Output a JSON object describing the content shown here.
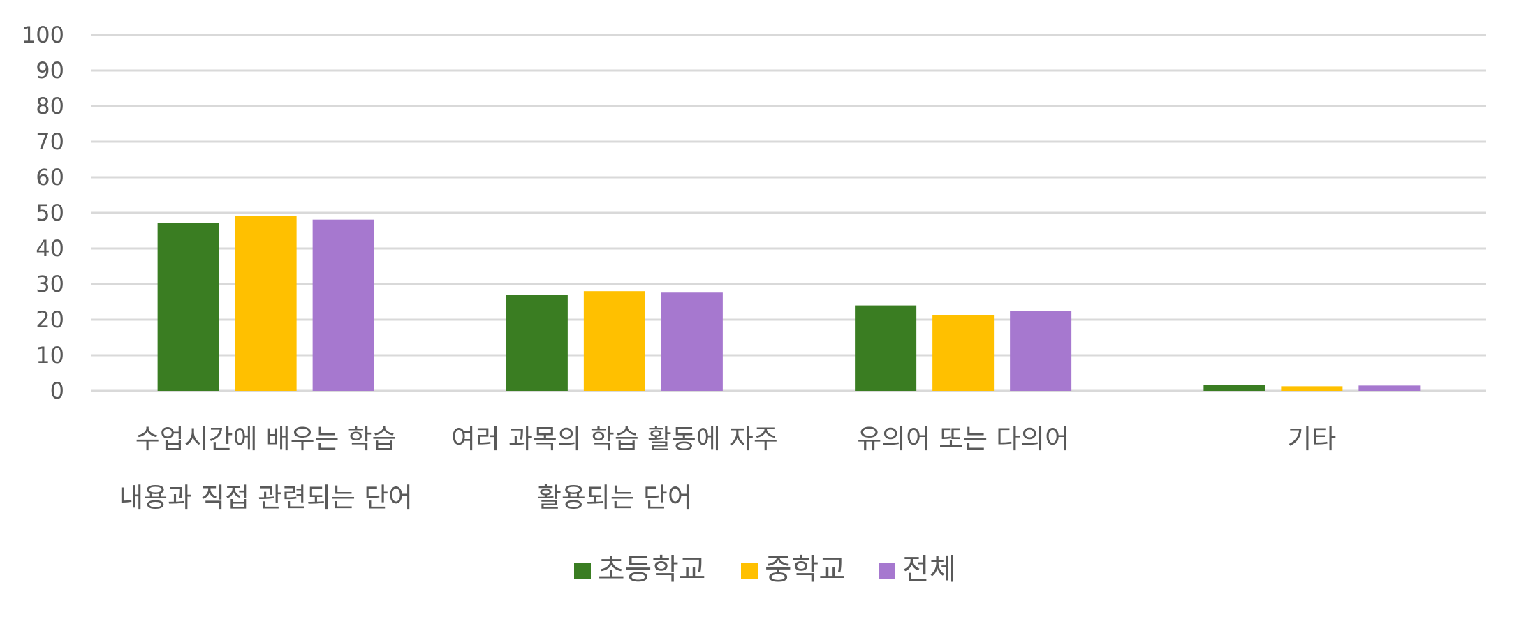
{
  "chart_data": {
    "type": "bar",
    "categories": [
      [
        "수업시간에 배우는 학습",
        "내용과 직접 관련되는 단어"
      ],
      [
        "여러 과목의 학습 활동에 자주",
        "활용되는 단어"
      ],
      [
        "유의어 또는 다의어"
      ],
      [
        "기타"
      ]
    ],
    "series": [
      {
        "name": "초등학교",
        "color": "#3A7D22",
        "values": [
          47.2,
          27.0,
          24.0,
          1.7
        ]
      },
      {
        "name": "중학교",
        "color": "#FFC000",
        "values": [
          49.2,
          28.0,
          21.2,
          1.3
        ]
      },
      {
        "name": "전체",
        "color": "#A678CF",
        "values": [
          48.1,
          27.6,
          22.4,
          1.5
        ]
      }
    ],
    "ylim": [
      0,
      100
    ],
    "yticks": [
      0,
      10,
      20,
      30,
      40,
      50,
      60,
      70,
      80,
      90,
      100
    ],
    "grid": true,
    "legend_position": "bottom"
  }
}
